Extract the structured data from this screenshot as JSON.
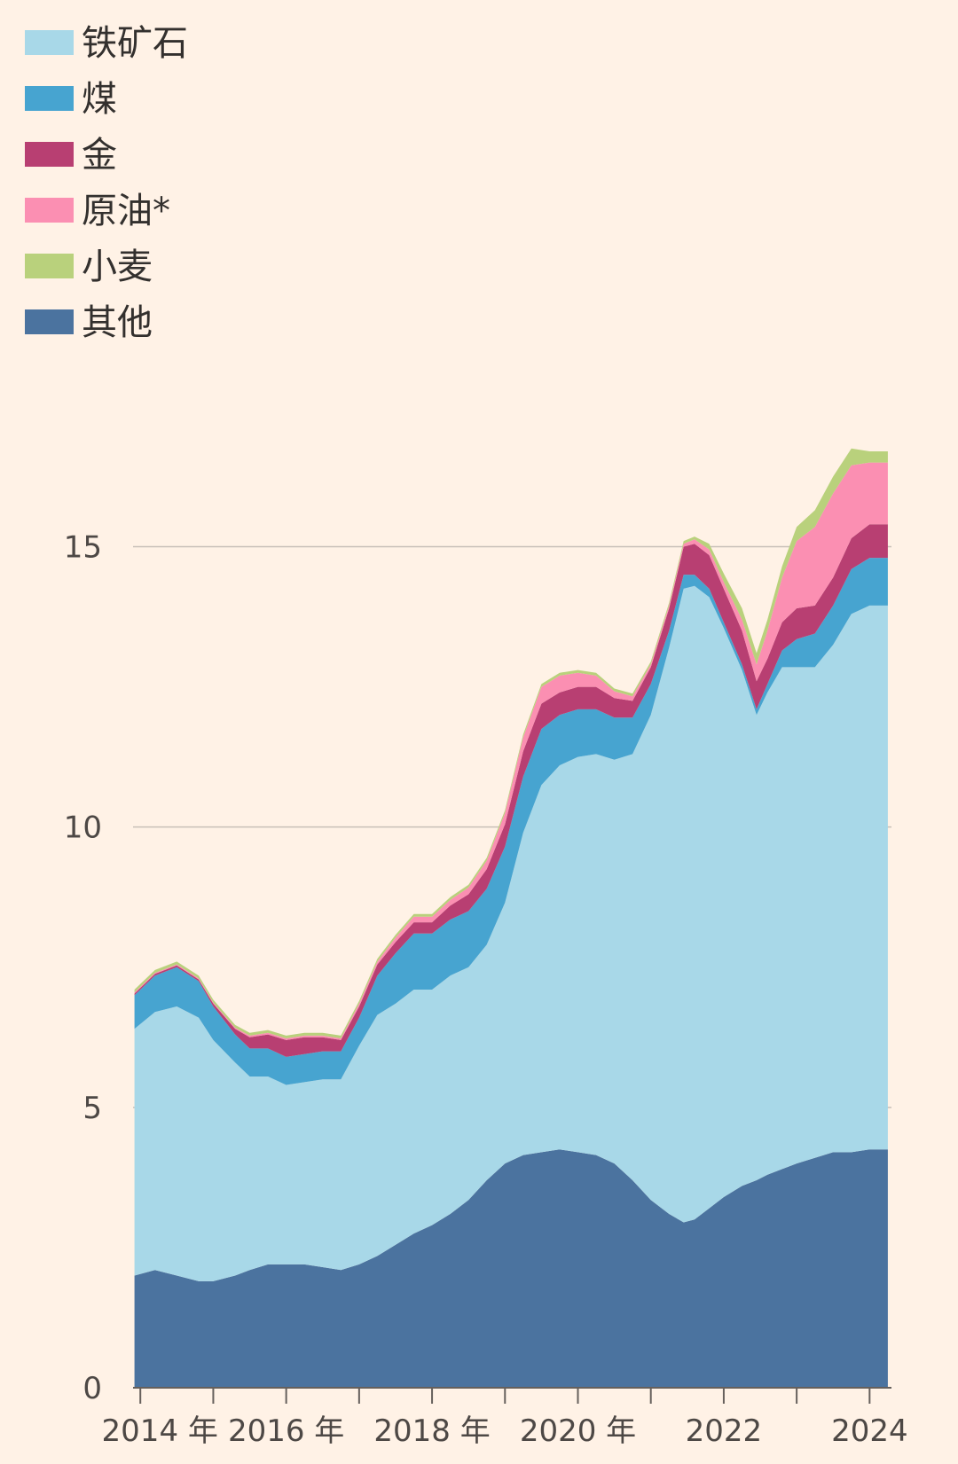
{
  "chart_data": {
    "type": "area",
    "stacked": true,
    "title": "",
    "xlabel": "",
    "ylabel": "",
    "ylim": [
      0,
      17
    ],
    "yticks": [
      0,
      5,
      10,
      15
    ],
    "xlim": [
      2013.9,
      2024.3
    ],
    "x_tick_positions": [
      2014,
      2015,
      2016,
      2017,
      2018,
      2019,
      2020,
      2021,
      2022,
      2023,
      2024
    ],
    "x_tick_labels": [
      {
        "x": 2014,
        "label": "2014 年"
      },
      {
        "x": 2016,
        "label": "2016 年"
      },
      {
        "x": 2018,
        "label": "2018 年"
      },
      {
        "x": 2020,
        "label": "2020 年"
      },
      {
        "x": 2022,
        "label": "2022"
      },
      {
        "x": 2024,
        "label": "2024"
      }
    ],
    "grid": "horizontal",
    "legend_position": "top-left",
    "legend_order": [
      "iron_ore",
      "coal",
      "gold",
      "crude",
      "wheat",
      "other"
    ],
    "x": [
      2013.92,
      2014.2,
      2014.5,
      2014.8,
      2015.0,
      2015.3,
      2015.5,
      2015.75,
      2016.0,
      2016.25,
      2016.5,
      2016.75,
      2017.0,
      2017.25,
      2017.5,
      2017.75,
      2018.0,
      2018.25,
      2018.5,
      2018.75,
      2019.0,
      2019.25,
      2019.5,
      2019.75,
      2020.0,
      2020.25,
      2020.5,
      2020.75,
      2021.0,
      2021.25,
      2021.45,
      2021.6,
      2021.8,
      2022.0,
      2022.25,
      2022.45,
      2022.6,
      2022.8,
      2023.0,
      2023.25,
      2023.5,
      2023.75,
      2024.0,
      2024.25
    ],
    "series": [
      {
        "key": "other",
        "name": "其他",
        "color": "#4b739f",
        "values": [
          2.0,
          2.1,
          2.0,
          1.9,
          1.9,
          2.0,
          2.1,
          2.2,
          2.2,
          2.2,
          2.15,
          2.1,
          2.2,
          2.35,
          2.55,
          2.75,
          2.9,
          3.1,
          3.35,
          3.7,
          4.0,
          4.15,
          4.2,
          4.25,
          4.2,
          4.15,
          4.0,
          3.7,
          3.35,
          3.1,
          2.95,
          3.0,
          3.2,
          3.4,
          3.6,
          3.7,
          3.8,
          3.9,
          4.0,
          4.1,
          4.2,
          4.2,
          4.25,
          4.25
        ]
      },
      {
        "key": "iron_ore",
        "name": "铁矿石",
        "color": "#a8d8e8",
        "values": [
          4.4,
          4.6,
          4.8,
          4.7,
          4.3,
          3.8,
          3.45,
          3.35,
          3.2,
          3.25,
          3.35,
          3.4,
          3.9,
          4.3,
          4.3,
          4.35,
          4.2,
          4.25,
          4.15,
          4.2,
          4.65,
          5.75,
          6.55,
          6.85,
          7.05,
          7.15,
          7.2,
          7.6,
          8.65,
          10.1,
          11.3,
          11.3,
          10.9,
          10.15,
          9.2,
          8.3,
          8.6,
          8.95,
          8.85,
          8.75,
          9.05,
          9.6,
          9.7,
          9.7
        ]
      },
      {
        "key": "coal",
        "name": "煤",
        "color": "#47a4d0",
        "values": [
          0.6,
          0.65,
          0.7,
          0.65,
          0.6,
          0.5,
          0.5,
          0.5,
          0.5,
          0.5,
          0.5,
          0.5,
          0.5,
          0.7,
          0.9,
          1.0,
          1.0,
          1.0,
          1.0,
          1.0,
          1.0,
          1.0,
          1.0,
          0.9,
          0.85,
          0.8,
          0.75,
          0.65,
          0.55,
          0.3,
          0.25,
          0.2,
          0.15,
          0.1,
          0.1,
          0.1,
          0.15,
          0.3,
          0.5,
          0.6,
          0.7,
          0.8,
          0.85,
          0.85
        ]
      },
      {
        "key": "gold",
        "name": "金",
        "color": "#b83f72",
        "values": [
          0.03,
          0.03,
          0.03,
          0.03,
          0.05,
          0.1,
          0.2,
          0.25,
          0.3,
          0.3,
          0.25,
          0.2,
          0.2,
          0.2,
          0.2,
          0.2,
          0.2,
          0.25,
          0.3,
          0.35,
          0.4,
          0.45,
          0.45,
          0.4,
          0.4,
          0.4,
          0.35,
          0.3,
          0.3,
          0.4,
          0.5,
          0.55,
          0.6,
          0.6,
          0.6,
          0.5,
          0.45,
          0.5,
          0.55,
          0.5,
          0.5,
          0.55,
          0.6,
          0.6
        ]
      },
      {
        "key": "crude",
        "name": "原油*",
        "color": "#fb8fb2",
        "values": [
          0.02,
          0.02,
          0.02,
          0.02,
          0.02,
          0.02,
          0.03,
          0.03,
          0.03,
          0.03,
          0.03,
          0.03,
          0.05,
          0.05,
          0.08,
          0.1,
          0.1,
          0.1,
          0.12,
          0.15,
          0.2,
          0.25,
          0.3,
          0.3,
          0.25,
          0.2,
          0.12,
          0.08,
          0.05,
          0.05,
          0.05,
          0.08,
          0.1,
          0.12,
          0.2,
          0.3,
          0.5,
          0.8,
          1.2,
          1.4,
          1.5,
          1.3,
          1.1,
          1.1
        ]
      },
      {
        "key": "wheat",
        "name": "小麦",
        "color": "#b9d17c",
        "values": [
          0.05,
          0.05,
          0.05,
          0.05,
          0.05,
          0.05,
          0.05,
          0.05,
          0.05,
          0.05,
          0.05,
          0.05,
          0.05,
          0.05,
          0.05,
          0.05,
          0.05,
          0.05,
          0.05,
          0.05,
          0.05,
          0.05,
          0.05,
          0.05,
          0.05,
          0.05,
          0.05,
          0.05,
          0.05,
          0.05,
          0.05,
          0.05,
          0.1,
          0.15,
          0.2,
          0.2,
          0.2,
          0.2,
          0.25,
          0.3,
          0.3,
          0.3,
          0.2,
          0.2
        ]
      }
    ]
  }
}
